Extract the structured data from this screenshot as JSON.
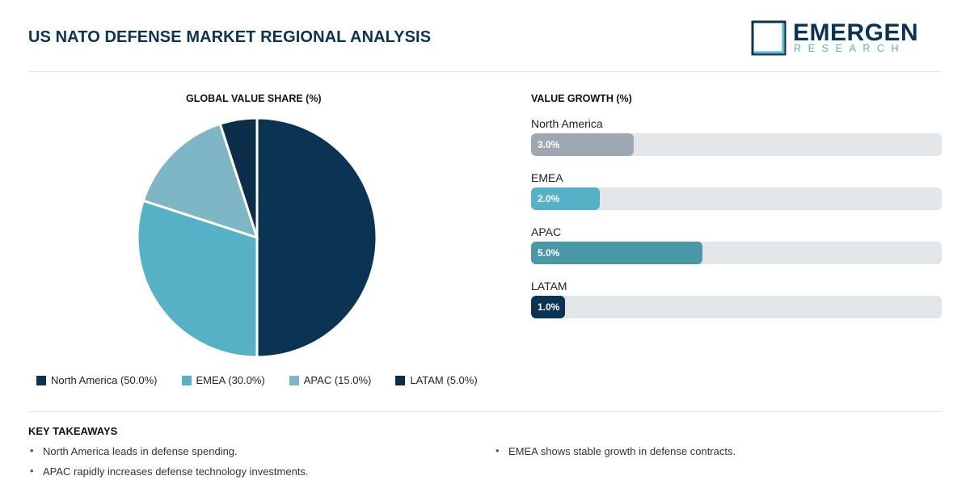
{
  "header": {
    "title": "US NATO DEFENSE MARKET REGIONAL ANALYSIS",
    "logo_word": "EMERGEN",
    "logo_sub": "RESEARCH"
  },
  "pie": {
    "title": "GLOBAL VALUE SHARE (%)"
  },
  "growth": {
    "title": "VALUE GROWTH (%)"
  },
  "chart_data": [
    {
      "type": "pie",
      "title": "GLOBAL VALUE SHARE (%)",
      "categories": [
        "North America",
        "EMEA",
        "APAC",
        "LATAM"
      ],
      "values": [
        50.0,
        30.0,
        15.0,
        5.0
      ],
      "colors": [
        "#0b3354",
        "#57b1c6",
        "#7fb6c5",
        "#0c2e48"
      ],
      "legend_labels": [
        "North America (50.0%)",
        "EMEA (30.0%)",
        "APAC (15.0%)",
        "LATAM (5.0%)"
      ],
      "legend_position": "bottom"
    },
    {
      "type": "bar",
      "orientation": "horizontal",
      "title": "VALUE GROWTH (%)",
      "categories": [
        "North America",
        "EMEA",
        "APAC",
        "LATAM"
      ],
      "values": [
        3.0,
        2.0,
        5.0,
        1.0
      ],
      "value_labels": [
        "3.0%",
        "2.0%",
        "5.0%",
        "1.0%"
      ],
      "colors": [
        "#9ea8b2",
        "#57b1c6",
        "#4a97a8",
        "#0b3354"
      ],
      "xlim": [
        0,
        12
      ]
    }
  ],
  "takeaways": {
    "title": "KEY TAKEAWAYS",
    "items": [
      "North America leads in defense spending.",
      "EMEA shows stable growth in defense contracts.",
      "APAC rapidly increases defense technology investments."
    ]
  }
}
